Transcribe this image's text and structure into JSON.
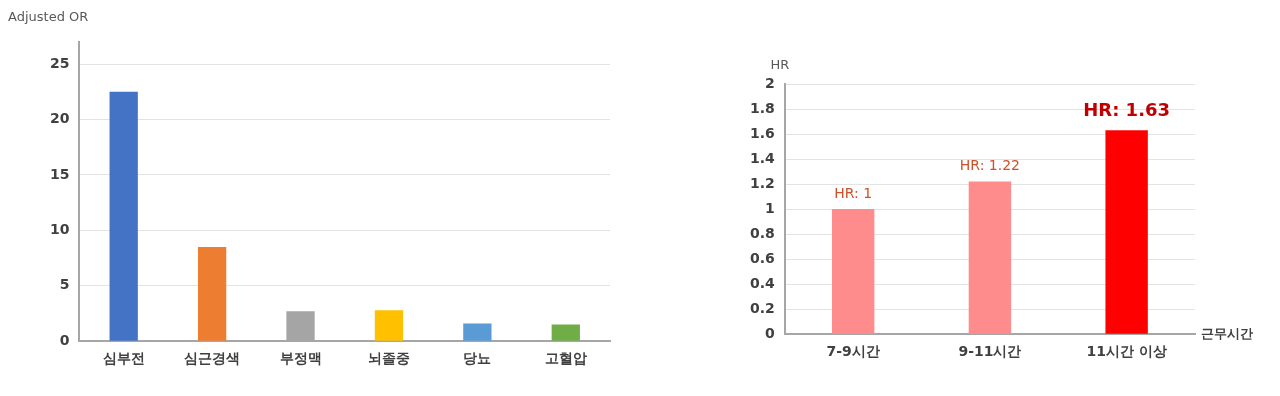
{
  "chart_data": [
    {
      "type": "bar",
      "ylabel": "Adjusted OR",
      "categories": [
        "심부전",
        "심근경색",
        "부정맥",
        "뇌졸중",
        "당뇨",
        "고혈압"
      ],
      "values": [
        22.5,
        8.5,
        2.7,
        2.8,
        1.6,
        1.5
      ],
      "colors": [
        "#4472c4",
        "#ed7d31",
        "#a5a5a5",
        "#ffc000",
        "#5b9bd5",
        "#70ad47"
      ],
      "ylim": [
        0,
        27
      ],
      "yticks": [
        0,
        5,
        10,
        15,
        20,
        25
      ],
      "grid": "y"
    },
    {
      "type": "bar",
      "ylabel": "HR",
      "xlabel": "근무시간",
      "categories": [
        "7-9시간",
        "9-11시간",
        "11시간 이상"
      ],
      "values": [
        1,
        1.22,
        1.63
      ],
      "colors": [
        "#ff8c8c",
        "#ff8c8c",
        "#ff0000"
      ],
      "value_labels": [
        "HR: 1",
        "HR: 1.22",
        "HR: 1.63"
      ],
      "ylim": [
        0,
        2
      ],
      "yticks": [
        0,
        0.2,
        0.4,
        0.6,
        0.8,
        1,
        1.2,
        1.4,
        1.6,
        1.8,
        2
      ],
      "grid": "y"
    }
  ]
}
